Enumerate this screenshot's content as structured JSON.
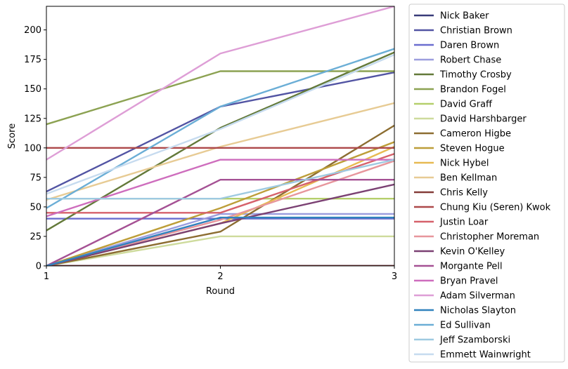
{
  "chart_data": {
    "type": "line",
    "title": "",
    "xlabel": "Round",
    "ylabel": "Score",
    "x": [
      1,
      2,
      3
    ],
    "xlim": [
      1,
      3
    ],
    "ylim": [
      0,
      220
    ],
    "xticks": [
      "1",
      "2",
      "3"
    ],
    "yticks": [
      "0",
      "25",
      "50",
      "75",
      "100",
      "125",
      "150",
      "175",
      "200"
    ],
    "grid": false,
    "legend_position": "outside-right",
    "series": [
      {
        "name": "Nick Baker",
        "color": "#393b79",
        "values": [
          0,
          0,
          0
        ]
      },
      {
        "name": "Christian Brown",
        "color": "#5254a3",
        "values": [
          63,
          135,
          164
        ]
      },
      {
        "name": "Daren Brown",
        "color": "#6b6ecf",
        "values": [
          40,
          40,
          40
        ]
      },
      {
        "name": "Robert Chase",
        "color": "#9c9ede",
        "values": [
          0,
          44,
          44
        ]
      },
      {
        "name": "Timothy Crosby",
        "color": "#637939",
        "values": [
          30,
          117,
          181
        ]
      },
      {
        "name": "Brandon Fogel",
        "color": "#8ca252",
        "values": [
          120,
          165,
          165
        ]
      },
      {
        "name": "David Graff",
        "color": "#b5cf6b",
        "values": [
          57,
          57,
          57
        ]
      },
      {
        "name": "David Harshbarger",
        "color": "#cedb9c",
        "values": [
          0,
          25,
          25
        ]
      },
      {
        "name": "Cameron Higbe",
        "color": "#8c6d31",
        "values": [
          0,
          29,
          119
        ]
      },
      {
        "name": "Steven Hogue",
        "color": "#bd9e39",
        "values": [
          0,
          49,
          105
        ]
      },
      {
        "name": "Nick Hybel",
        "color": "#e7ba52",
        "values": [
          0,
          36,
          101
        ]
      },
      {
        "name": "Ben Kellman",
        "color": "#e7cb94",
        "values": [
          56,
          101,
          138
        ]
      },
      {
        "name": "Chris Kelly",
        "color": "#843c39",
        "values": [
          0,
          0,
          0
        ]
      },
      {
        "name": "Chung Kiu (Seren) Kwok",
        "color": "#ad494a",
        "values": [
          100,
          100,
          100
        ]
      },
      {
        "name": "Justin Loar",
        "color": "#d6616b",
        "values": [
          45,
          45,
          95
        ]
      },
      {
        "name": "Christopher Moreman",
        "color": "#e7969c",
        "values": [
          0,
          39,
          89
        ]
      },
      {
        "name": "Kevin O'Kelley",
        "color": "#7b4173",
        "values": [
          0,
          36,
          69
        ]
      },
      {
        "name": "Morgante Pell",
        "color": "#a55194",
        "values": [
          0,
          73,
          73
        ]
      },
      {
        "name": "Bryan Pravel",
        "color": "#ce6dbd",
        "values": [
          42,
          90,
          90
        ]
      },
      {
        "name": "Adam Silverman",
        "color": "#de9ed6",
        "values": [
          90,
          180,
          220
        ]
      },
      {
        "name": "Nicholas Slayton",
        "color": "#3182bd",
        "values": [
          0,
          41,
          41
        ]
      },
      {
        "name": "Ed Sullivan",
        "color": "#6baed6",
        "values": [
          49,
          135,
          184
        ]
      },
      {
        "name": "Jeff Szamborski",
        "color": "#9ecae1",
        "values": [
          57,
          57,
          90
        ]
      },
      {
        "name": "Emmett Wainwright",
        "color": "#c6dbef",
        "values": [
          61,
          116,
          179
        ]
      }
    ]
  }
}
